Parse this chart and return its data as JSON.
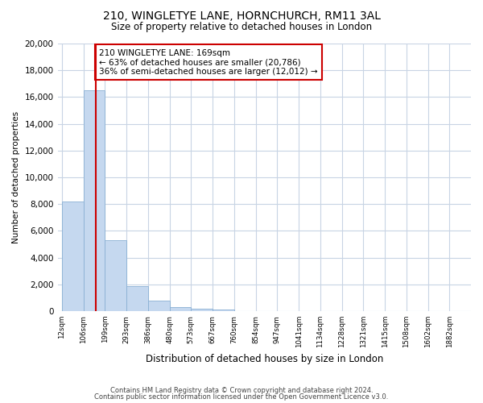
{
  "title": "210, WINGLETYE LANE, HORNCHURCH, RM11 3AL",
  "subtitle": "Size of property relative to detached houses in London",
  "xlabel": "Distribution of detached houses by size in London",
  "ylabel": "Number of detached properties",
  "bar_values": [
    8200,
    16500,
    5300,
    1850,
    750,
    300,
    175,
    125,
    0,
    0,
    0,
    0,
    0,
    0,
    0,
    0,
    0,
    0,
    0
  ],
  "bin_labels": [
    "12sqm",
    "106sqm",
    "199sqm",
    "293sqm",
    "386sqm",
    "480sqm",
    "573sqm",
    "667sqm",
    "760sqm",
    "854sqm",
    "947sqm",
    "1041sqm",
    "1134sqm",
    "1228sqm",
    "1321sqm",
    "1415sqm",
    "1508sqm",
    "1602sqm",
    "1882sqm"
  ],
  "bar_color": "#c5d8ef",
  "bar_edge_color": "#8ab0d4",
  "property_line_x": 1.58,
  "property_line_color": "#cc0000",
  "annotation_text": "210 WINGLETYE LANE: 169sqm\n← 63% of detached houses are smaller (20,786)\n36% of semi-detached houses are larger (12,012) →",
  "annotation_box_color": "#ffffff",
  "annotation_box_edge_color": "#cc0000",
  "ylim": [
    0,
    20000
  ],
  "yticks": [
    0,
    2000,
    4000,
    6000,
    8000,
    10000,
    12000,
    14000,
    16000,
    18000,
    20000
  ],
  "footer_line1": "Contains HM Land Registry data © Crown copyright and database right 2024.",
  "footer_line2": "Contains public sector information licensed under the Open Government Licence v3.0.",
  "background_color": "#ffffff",
  "grid_color": "#c8d4e4"
}
